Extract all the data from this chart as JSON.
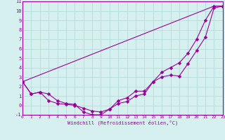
{
  "xlabel": "Windchill (Refroidissement éolien,°C)",
  "background_color": "#d6f0f0",
  "grid_color": "#b0d8d8",
  "line_color": "#990099",
  "x_min": 0,
  "x_max": 23,
  "y_min": -1,
  "y_max": 11,
  "line1_x": [
    0,
    1,
    2,
    3,
    4,
    5,
    6,
    7,
    8,
    9,
    10,
    11,
    12,
    13,
    14,
    15,
    16,
    17,
    18,
    19,
    20,
    21,
    22,
    23
  ],
  "line1_y": [
    2.5,
    1.2,
    1.4,
    0.5,
    0.2,
    0.1,
    0.0,
    -0.3,
    -0.6,
    -0.7,
    -0.4,
    0.2,
    0.4,
    1.0,
    1.2,
    2.5,
    3.0,
    3.2,
    3.1,
    4.4,
    5.8,
    7.2,
    10.3,
    10.5
  ],
  "line2_x": [
    0,
    1,
    2,
    3,
    4,
    5,
    6,
    7,
    8,
    9,
    10,
    11,
    12,
    13,
    14,
    15,
    16,
    17,
    18,
    19,
    20,
    21,
    22,
    23
  ],
  "line2_y": [
    2.5,
    1.2,
    1.4,
    1.2,
    0.5,
    0.2,
    0.1,
    -0.7,
    -1.0,
    -1.0,
    -0.4,
    0.5,
    0.8,
    1.5,
    1.5,
    2.5,
    3.5,
    4.0,
    4.5,
    5.5,
    7.0,
    9.0,
    10.5,
    10.5
  ],
  "line3_x": [
    0,
    22,
    23
  ],
  "line3_y": [
    2.5,
    10.5,
    10.5
  ],
  "marker_size": 2.5,
  "linewidth": 0.8,
  "tick_fontsize": 4.5,
  "xlabel_fontsize": 5.0
}
